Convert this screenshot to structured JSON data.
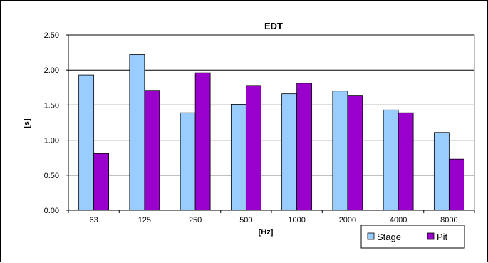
{
  "chart_data": {
    "type": "bar",
    "title": "EDT",
    "xlabel": "[Hz]",
    "ylabel": "[s]",
    "categories": [
      "63",
      "125",
      "250",
      "500",
      "1000",
      "2000",
      "4000",
      "8000"
    ],
    "y_ticks": [
      "0.00",
      "0.50",
      "1.00",
      "1.50",
      "2.00",
      "2.50"
    ],
    "ylim": [
      0,
      2.5
    ],
    "grid": true,
    "legend_position": "bottom-right",
    "series": [
      {
        "name": "Stage",
        "color": "#99CCFF",
        "values": [
          1.93,
          2.22,
          1.39,
          1.51,
          1.66,
          1.7,
          1.43,
          1.11
        ]
      },
      {
        "name": "Pit",
        "color": "#9900CC",
        "values": [
          0.81,
          1.71,
          1.96,
          1.78,
          1.81,
          1.64,
          1.39,
          0.73
        ]
      }
    ]
  }
}
